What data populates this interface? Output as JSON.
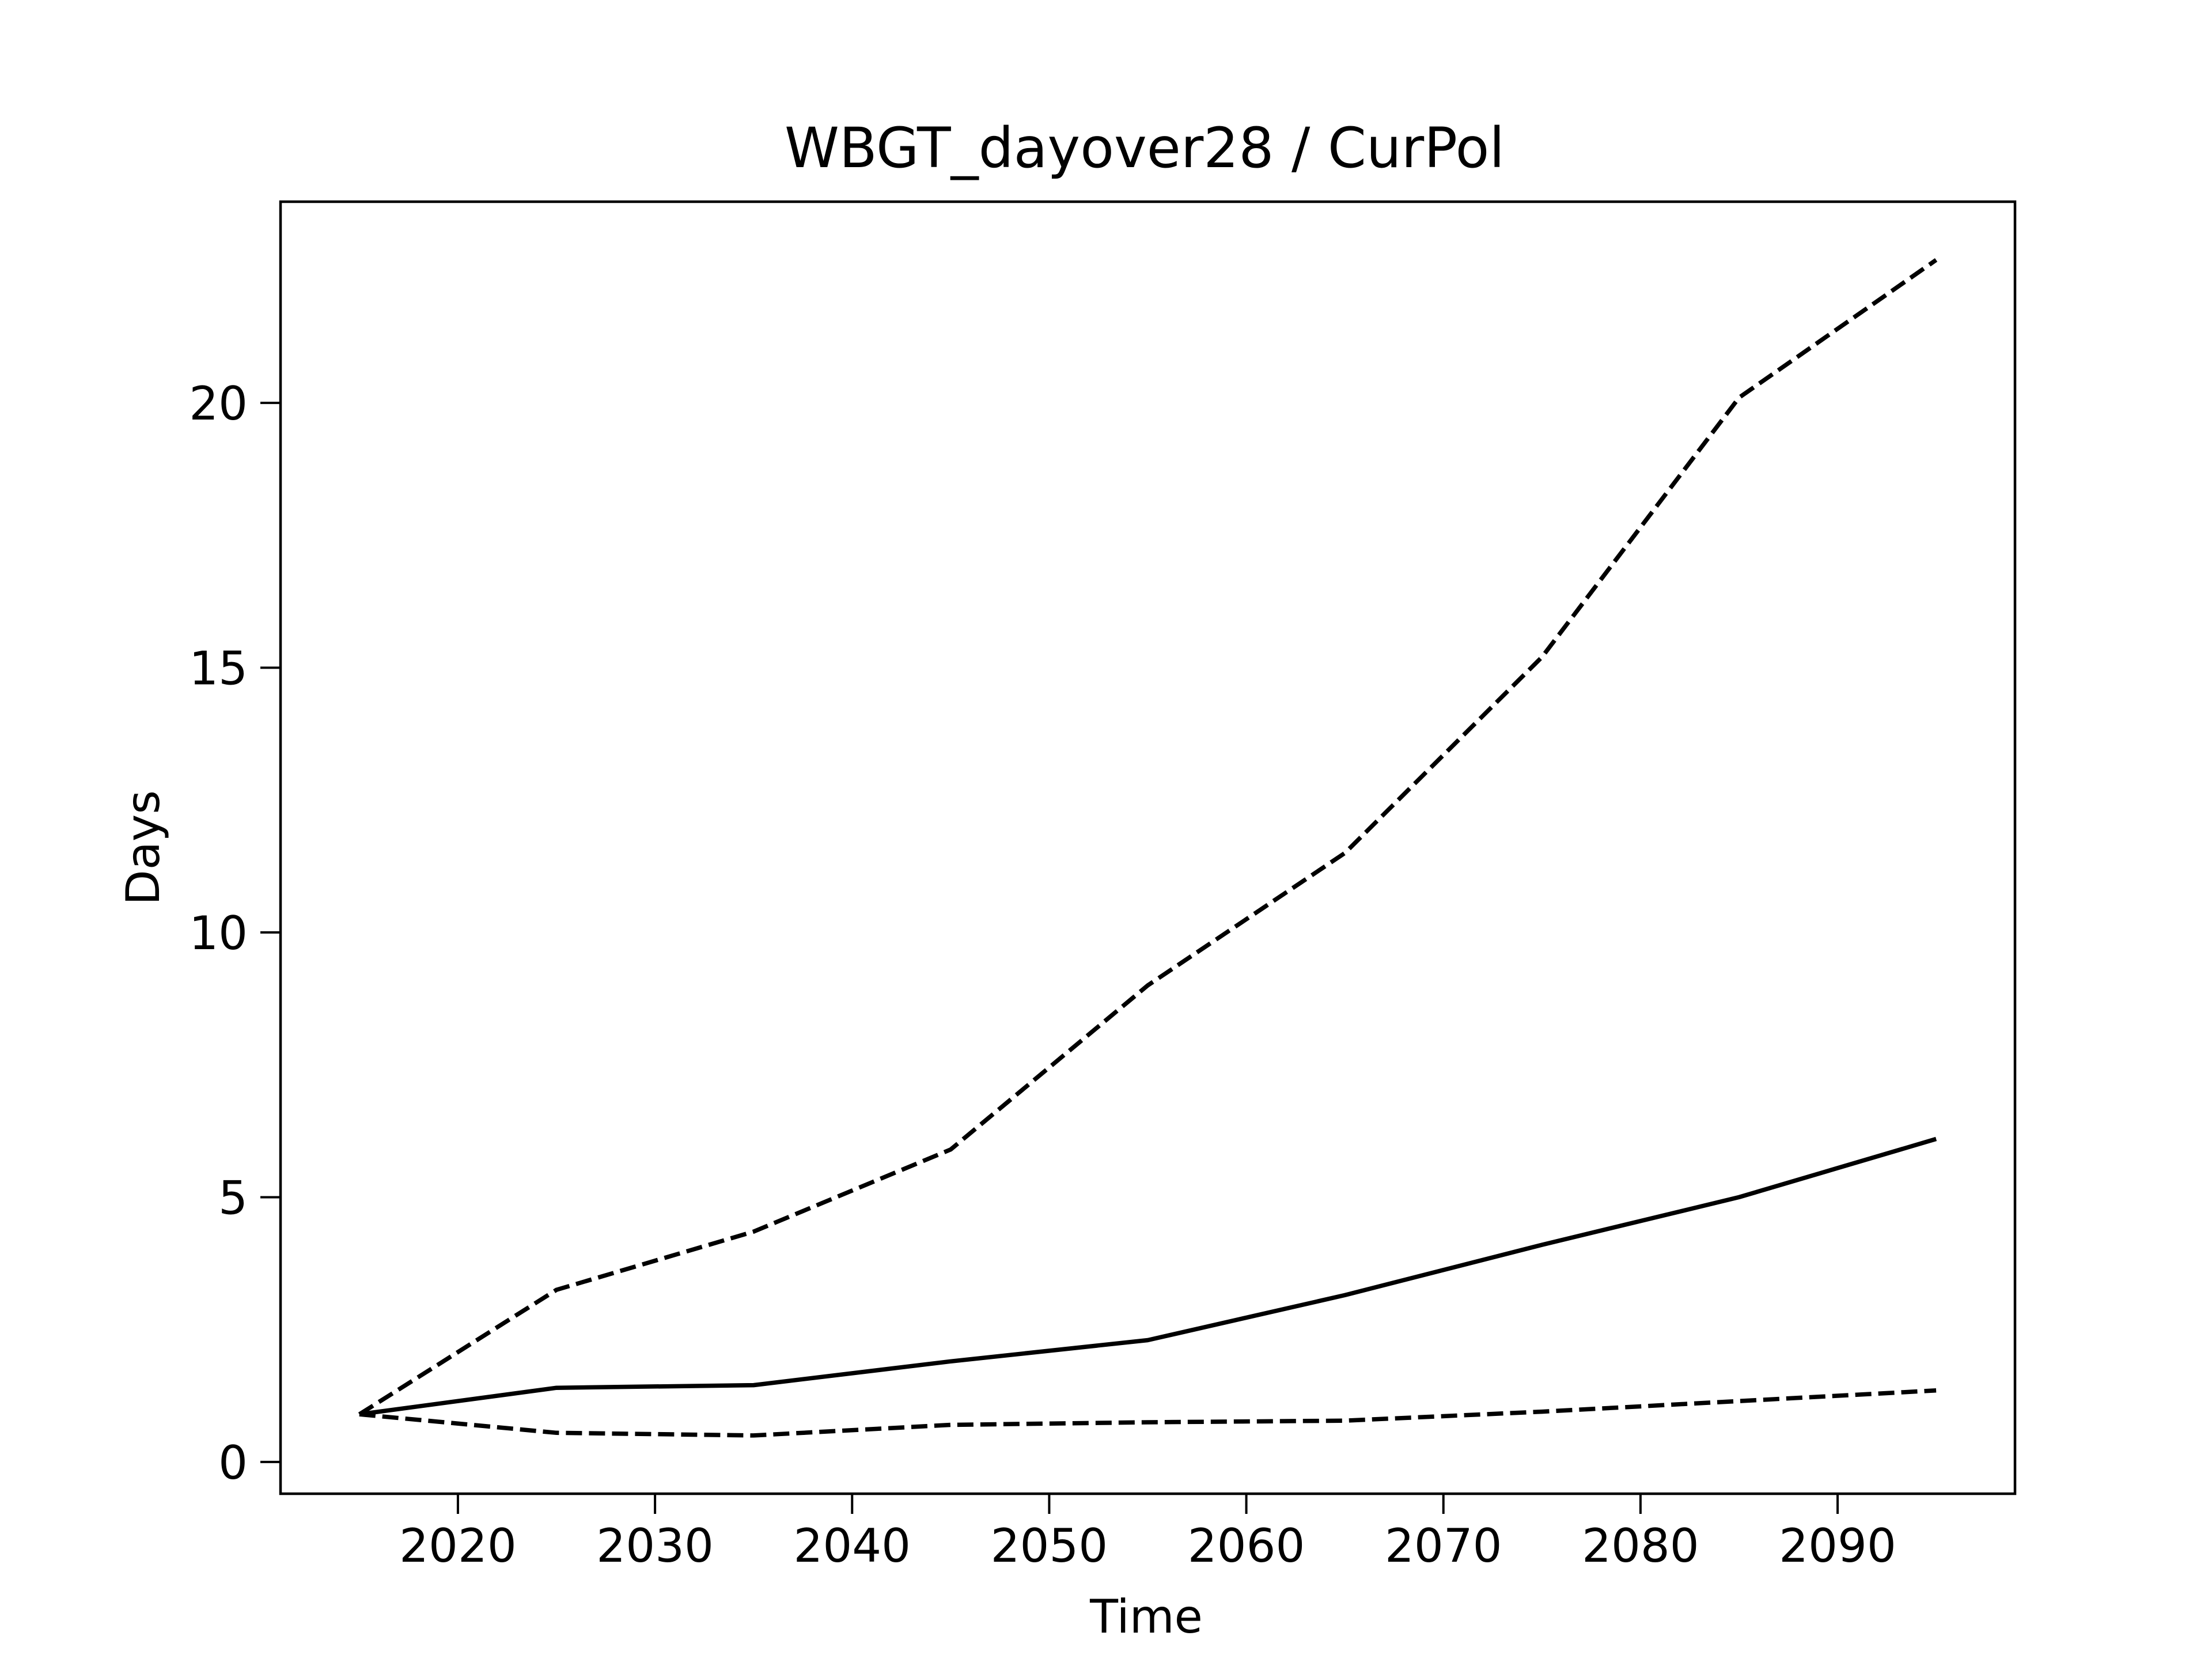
{
  "chart_data": {
    "type": "line",
    "title": "WBGT_dayover28 / CurPol",
    "xlabel": "Time",
    "ylabel": "Days",
    "xlim": [
      2011,
      2099
    ],
    "ylim": [
      -0.6,
      23.8
    ],
    "grid": false,
    "legend": "none",
    "x_ticks": [
      2020,
      2030,
      2040,
      2050,
      2060,
      2070,
      2080,
      2090
    ],
    "y_ticks": [
      0,
      5,
      10,
      15,
      20
    ],
    "x": [
      2015,
      2025,
      2035,
      2045,
      2055,
      2065,
      2075,
      2085,
      2095
    ],
    "series": [
      {
        "style": "solid",
        "color": "#000000",
        "values": [
          0.9,
          1.4,
          1.45,
          1.9,
          2.3,
          3.15,
          4.1,
          5.0,
          6.1
        ]
      },
      {
        "style": "dashed",
        "color": "#000000",
        "values": [
          0.9,
          3.25,
          4.35,
          5.9,
          9.0,
          11.5,
          15.2,
          20.1,
          22.7
        ]
      },
      {
        "style": "dashed",
        "color": "#000000",
        "values": [
          0.9,
          0.55,
          0.5,
          0.7,
          0.75,
          0.78,
          0.95,
          1.15,
          1.35
        ]
      }
    ]
  }
}
